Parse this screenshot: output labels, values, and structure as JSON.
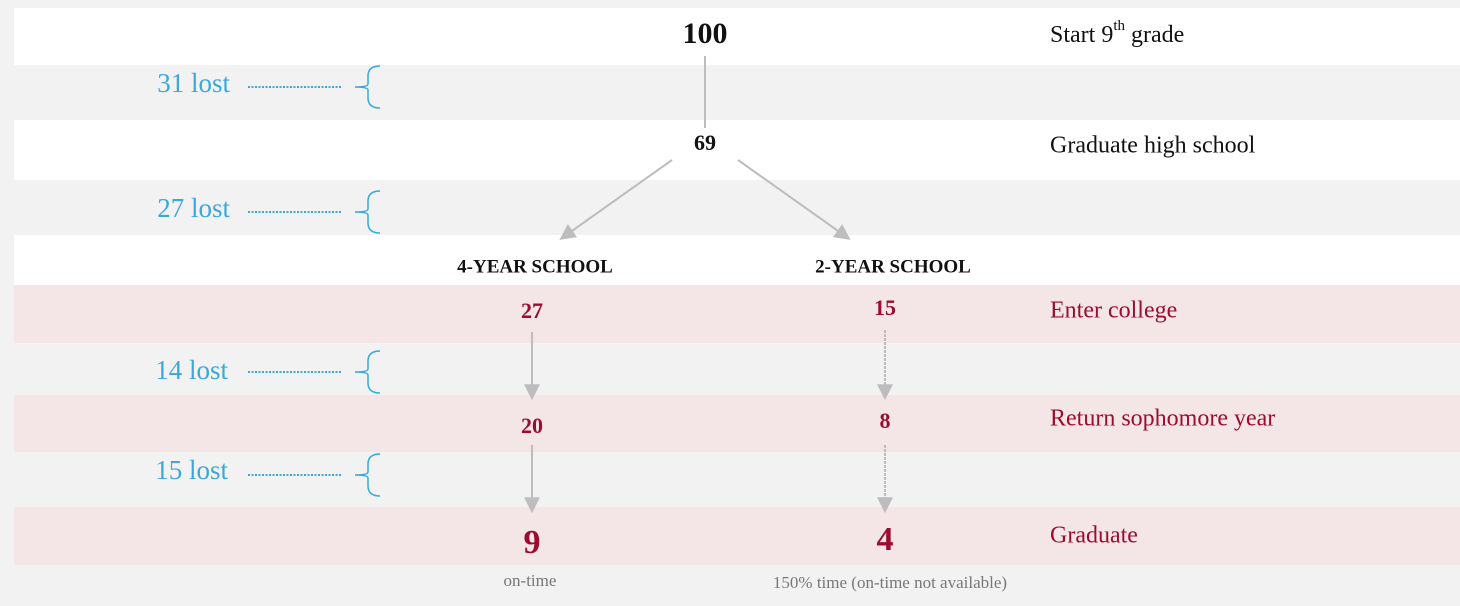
{
  "stages": [
    {
      "label_parts": [
        "Start 9",
        "th",
        " grade"
      ],
      "total": 100
    },
    {
      "label": "Graduate high school",
      "total": 69
    },
    {
      "label": "Enter college",
      "four_year": 27,
      "two_year": 15
    },
    {
      "label": "Return sophomore year",
      "four_year": 20,
      "two_year": 8
    },
    {
      "label": "Graduate",
      "four_year": 9,
      "two_year": 4
    }
  ],
  "losses": [
    "31 lost",
    "27 lost",
    "14 lost",
    "15 lost"
  ],
  "columns": {
    "four_year": "4-YEAR SCHOOL",
    "two_year": "2-YEAR SCHOOL"
  },
  "notes": {
    "four_year": "on-time",
    "two_year": "150% time (on-time not available)"
  }
}
